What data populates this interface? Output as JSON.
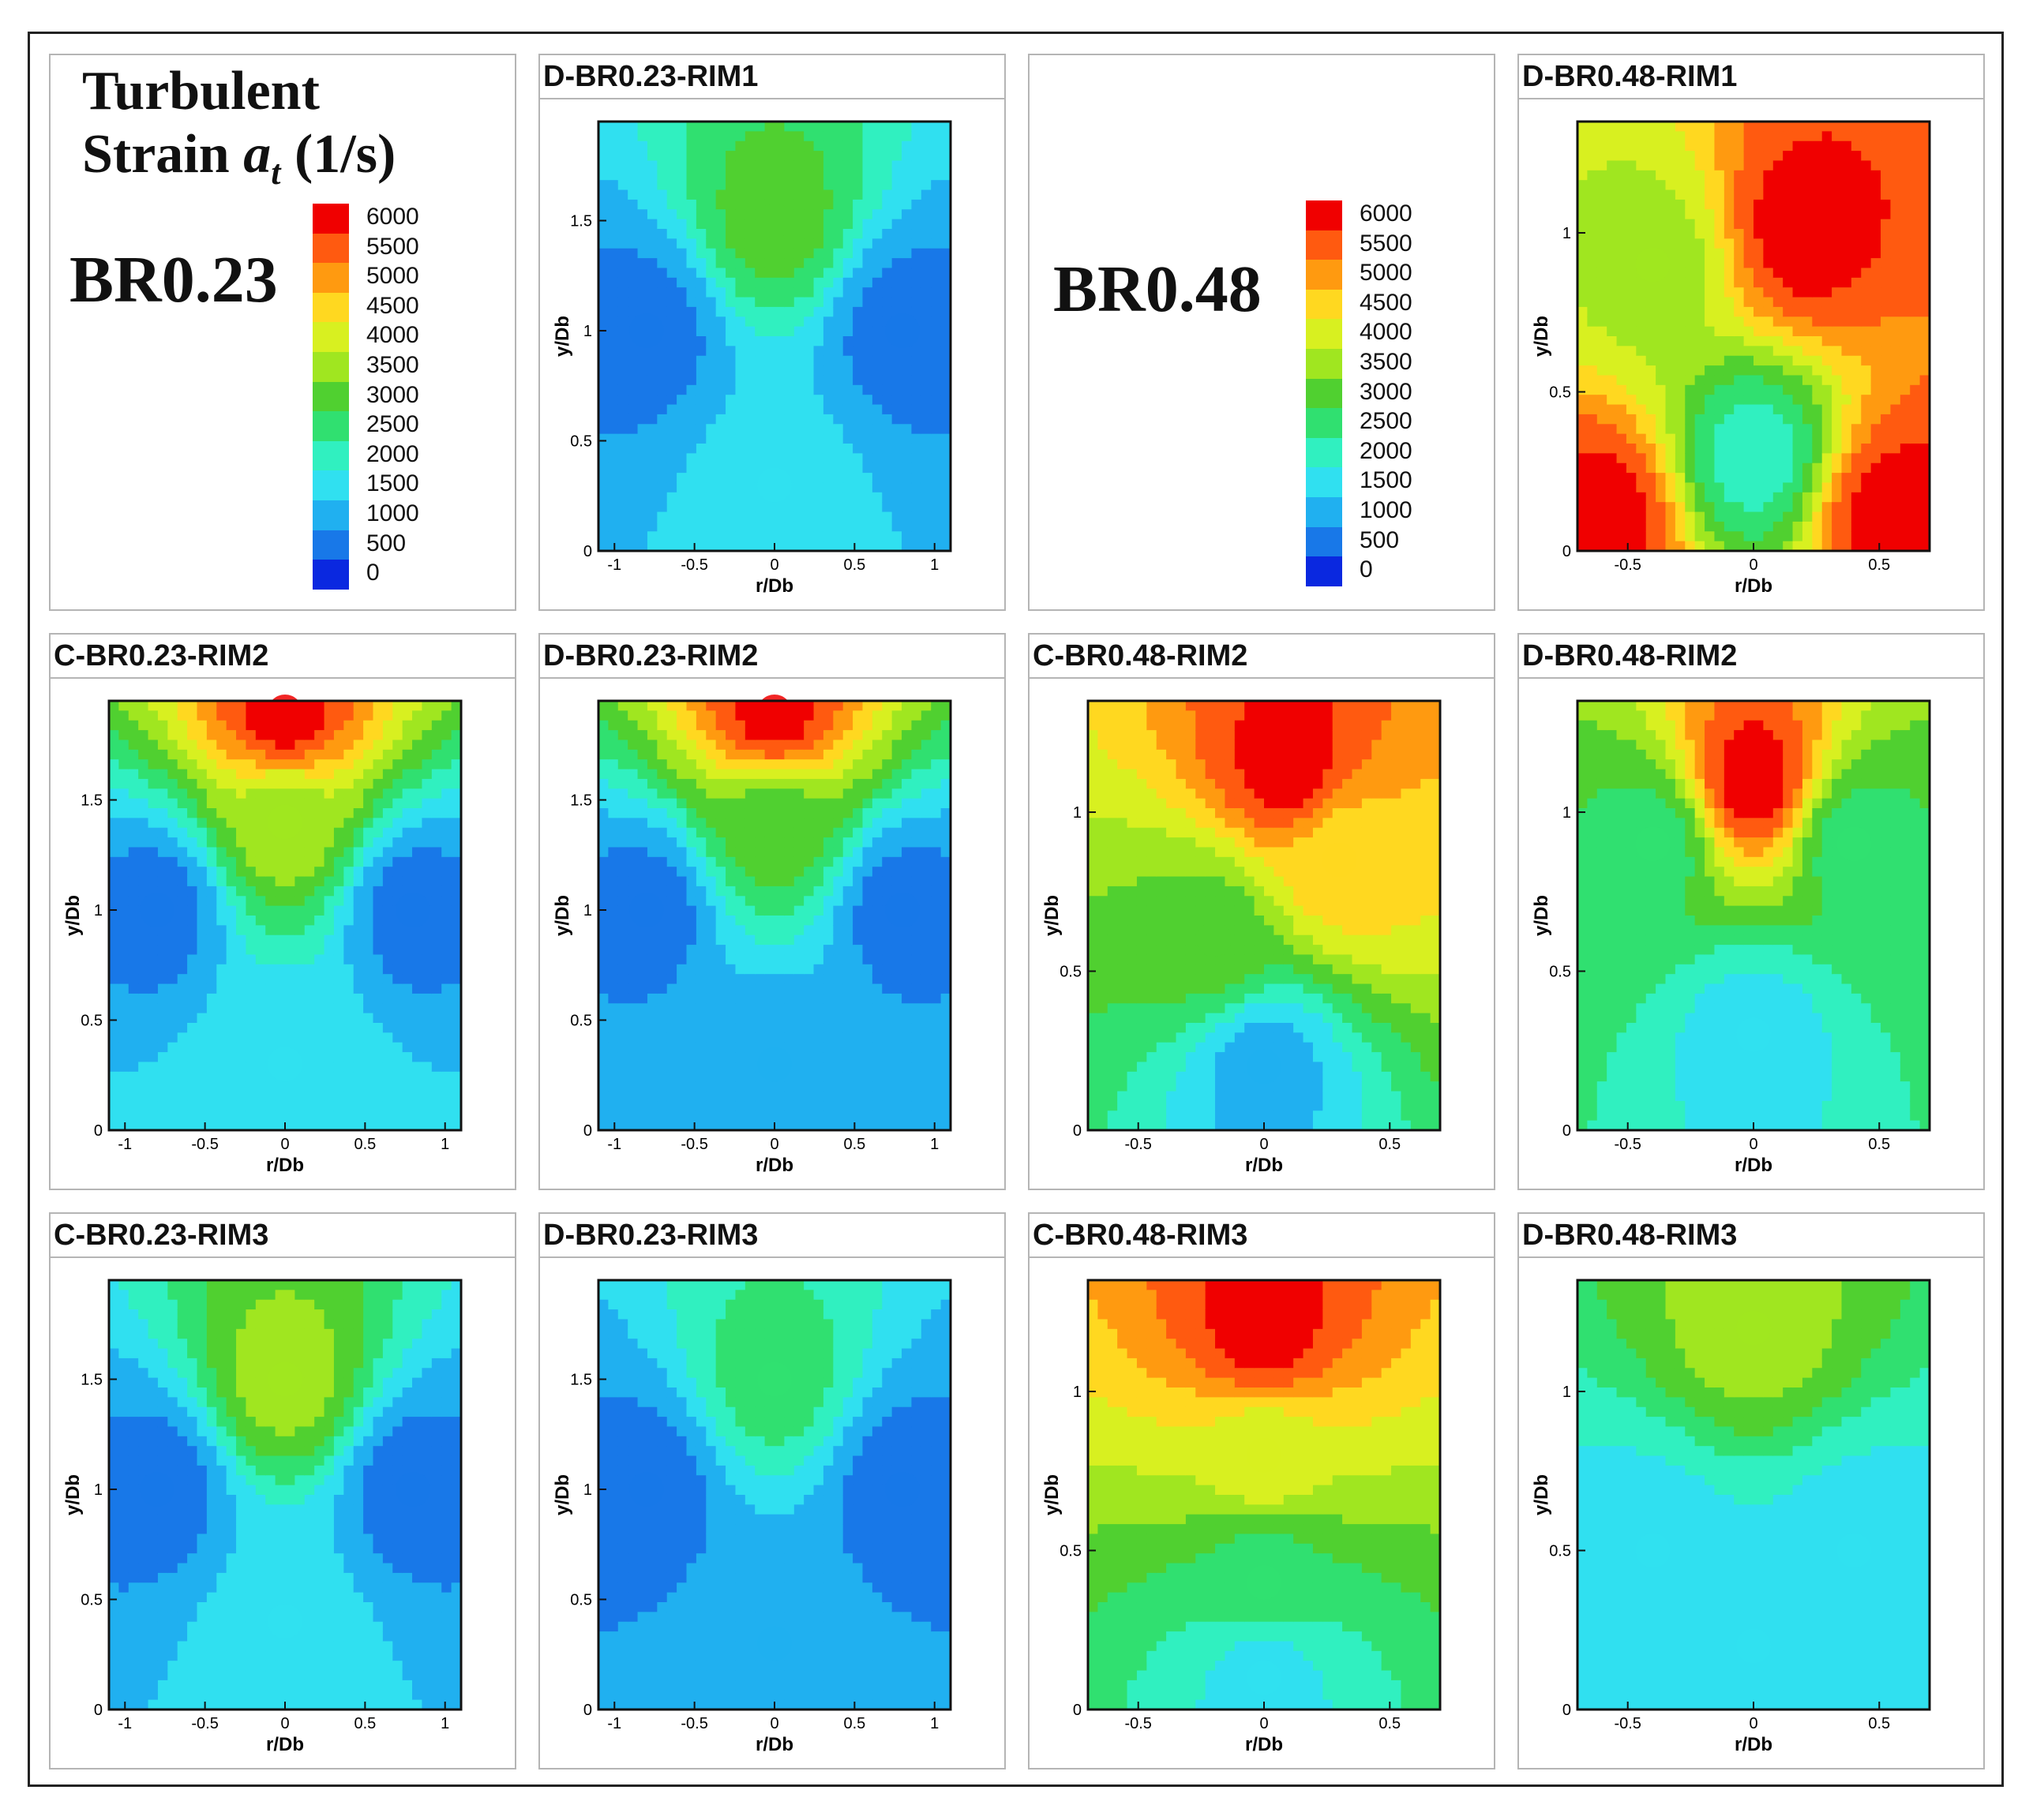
{
  "figure": {
    "legend_title_line1": "Turbulent",
    "legend_title_line2_prefix": "Strain ",
    "legend_title_symbol": "a",
    "legend_title_subscript": "t",
    "legend_title_units": " (1/s)",
    "br_labels": [
      "BR0.23",
      "BR0.48"
    ]
  },
  "colorbar": {
    "levels": [
      "6000",
      "5500",
      "5000",
      "4500",
      "4000",
      "3500",
      "3000",
      "2500",
      "2000",
      "1500",
      "1000",
      "500",
      "0"
    ],
    "colors": [
      "#f00000",
      "#ff5a10",
      "#ff9a10",
      "#ffd820",
      "#d8f020",
      "#a0e620",
      "#50d030",
      "#30e070",
      "#30f0c0",
      "#30e0f0",
      "#20b0f0",
      "#1878e8",
      "#0a28e0"
    ]
  },
  "chart_data": [
    {
      "type": "heatmap",
      "title": "D-BR0.23-RIM1",
      "xlabel": "r/Db",
      "ylabel": "y/Db",
      "xlim": [
        -1.1,
        1.1
      ],
      "ylim": [
        0,
        1.95
      ],
      "xticks": [
        "-1",
        "-0.5",
        "0",
        "0.5",
        "1"
      ],
      "yticks": [
        "0",
        "0.5",
        "1",
        "1.5"
      ],
      "regions": [
        {
          "x": 0,
          "y": 1.5,
          "value": 3000
        },
        {
          "x": -0.8,
          "y": 1.0,
          "value": 500
        },
        {
          "x": 0.8,
          "y": 1.0,
          "value": 500
        },
        {
          "x": 0,
          "y": 0.3,
          "value": 1500
        }
      ]
    },
    {
      "type": "heatmap",
      "title": "D-BR0.48-RIM1",
      "xlabel": "r/Db",
      "ylabel": "y/Db",
      "xlim": [
        -0.7,
        0.7
      ],
      "ylim": [
        0,
        1.35
      ],
      "xticks": [
        "-0.5",
        "0",
        "0.5"
      ],
      "yticks": [
        "0",
        "0.5",
        "1"
      ],
      "regions": [
        {
          "x": 0.2,
          "y": 1.0,
          "value": 6000
        },
        {
          "x": -0.4,
          "y": 0.9,
          "value": 3500
        },
        {
          "x": 0,
          "y": 0.3,
          "value": 2000
        },
        {
          "x": -0.6,
          "y": 0.1,
          "value": 6000
        },
        {
          "x": 0.55,
          "y": 0.1,
          "value": 6000
        }
      ]
    },
    {
      "type": "heatmap",
      "title": "C-BR0.23-RIM2",
      "xlabel": "r/Db",
      "ylabel": "y/Db",
      "xlim": [
        -1.1,
        1.1
      ],
      "ylim": [
        0,
        1.95
      ],
      "xticks": [
        "-1",
        "-0.5",
        "0",
        "0.5",
        "1"
      ],
      "yticks": [
        "0",
        "0.5",
        "1",
        "1.5"
      ],
      "regions": [
        {
          "x": 0,
          "y": 1.9,
          "value": 6000
        },
        {
          "x": 0,
          "y": 1.4,
          "value": 3500
        },
        {
          "x": -0.8,
          "y": 1.0,
          "value": 500
        },
        {
          "x": 0.8,
          "y": 1.0,
          "value": 500
        },
        {
          "x": 0,
          "y": 0.3,
          "value": 1500
        }
      ]
    },
    {
      "type": "heatmap",
      "title": "D-BR0.23-RIM2",
      "xlabel": "r/Db",
      "ylabel": "y/Db",
      "xlim": [
        -1.1,
        1.1
      ],
      "ylim": [
        0,
        1.95
      ],
      "xticks": [
        "-1",
        "-0.5",
        "0",
        "0.5",
        "1"
      ],
      "yticks": [
        "0",
        "0.5",
        "1",
        "1.5"
      ],
      "regions": [
        {
          "x": 0,
          "y": 1.9,
          "value": 6000
        },
        {
          "x": 0,
          "y": 1.4,
          "value": 3000
        },
        {
          "x": -0.8,
          "y": 1.0,
          "value": 500
        },
        {
          "x": 0.8,
          "y": 1.0,
          "value": 500
        },
        {
          "x": 0,
          "y": 0.3,
          "value": 1000
        }
      ]
    },
    {
      "type": "heatmap",
      "title": "C-BR0.48-RIM2",
      "xlabel": "r/Db",
      "ylabel": "y/Db",
      "xlim": [
        -0.7,
        0.7
      ],
      "ylim": [
        0,
        1.35
      ],
      "xticks": [
        "-0.5",
        "0",
        "0.5"
      ],
      "yticks": [
        "0",
        "0.5",
        "1"
      ],
      "regions": [
        {
          "x": 0.1,
          "y": 1.15,
          "value": 6000
        },
        {
          "x": 0.3,
          "y": 0.85,
          "value": 4500
        },
        {
          "x": -0.2,
          "y": 0.6,
          "value": 3000
        },
        {
          "x": 0,
          "y": 0.2,
          "value": 1000
        }
      ]
    },
    {
      "type": "heatmap",
      "title": "D-BR0.48-RIM2",
      "xlabel": "r/Db",
      "ylabel": "y/Db",
      "xlim": [
        -0.7,
        0.7
      ],
      "ylim": [
        0,
        1.35
      ],
      "xticks": [
        "-0.5",
        "0",
        "0.5"
      ],
      "yticks": [
        "0",
        "0.5",
        "1"
      ],
      "regions": [
        {
          "x": 0,
          "y": 1.1,
          "value": 6000
        },
        {
          "x": -0.4,
          "y": 0.9,
          "value": 2500
        },
        {
          "x": 0.4,
          "y": 0.9,
          "value": 2500
        },
        {
          "x": 0,
          "y": 0.3,
          "value": 1500
        }
      ]
    },
    {
      "type": "heatmap",
      "title": "C-BR0.23-RIM3",
      "xlabel": "r/Db",
      "ylabel": "y/Db",
      "xlim": [
        -1.1,
        1.1
      ],
      "ylim": [
        0,
        1.95
      ],
      "xticks": [
        "-1",
        "-0.5",
        "0",
        "0.5",
        "1"
      ],
      "yticks": [
        "0",
        "0.5",
        "1",
        "1.5"
      ],
      "regions": [
        {
          "x": 0,
          "y": 1.5,
          "value": 3500
        },
        {
          "x": -0.8,
          "y": 1.0,
          "value": 500
        },
        {
          "x": 0.8,
          "y": 1.0,
          "value": 500
        },
        {
          "x": 0,
          "y": 0.4,
          "value": 1500
        }
      ]
    },
    {
      "type": "heatmap",
      "title": "D-BR0.23-RIM3",
      "xlabel": "r/Db",
      "ylabel": "y/Db",
      "xlim": [
        -1.1,
        1.1
      ],
      "ylim": [
        0,
        1.95
      ],
      "xticks": [
        "-1",
        "-0.5",
        "0",
        "0.5",
        "1"
      ],
      "yticks": [
        "0",
        "0.5",
        "1",
        "1.5"
      ],
      "regions": [
        {
          "x": 0,
          "y": 1.5,
          "value": 2500
        },
        {
          "x": -0.8,
          "y": 1.0,
          "value": 500
        },
        {
          "x": 0.8,
          "y": 1.0,
          "value": 500
        },
        {
          "x": 0,
          "y": 0.3,
          "value": 1000
        }
      ]
    },
    {
      "type": "heatmap",
      "title": "C-BR0.48-RIM3",
      "xlabel": "r/Db",
      "ylabel": "y/Db",
      "xlim": [
        -0.7,
        0.7
      ],
      "ylim": [
        0,
        1.35
      ],
      "xticks": [
        "-0.5",
        "0",
        "0.5"
      ],
      "yticks": [
        "0",
        "0.5",
        "1"
      ],
      "regions": [
        {
          "x": 0,
          "y": 1.2,
          "value": 6000
        },
        {
          "x": 0,
          "y": 0.8,
          "value": 4000
        },
        {
          "x": 0,
          "y": 0.4,
          "value": 2500
        },
        {
          "x": 0,
          "y": 0.1,
          "value": 1500
        }
      ]
    },
    {
      "type": "heatmap",
      "title": "D-BR0.48-RIM3",
      "xlabel": "r/Db",
      "ylabel": "y/Db",
      "xlim": [
        -0.7,
        0.7
      ],
      "ylim": [
        0,
        1.35
      ],
      "xticks": [
        "-0.5",
        "0",
        "0.5"
      ],
      "yticks": [
        "0",
        "0.5",
        "1"
      ],
      "regions": [
        {
          "x": 0,
          "y": 1.2,
          "value": 3500
        },
        {
          "x": -0.4,
          "y": 0.5,
          "value": 1500
        },
        {
          "x": 0.4,
          "y": 0.5,
          "value": 1500
        },
        {
          "x": 0,
          "y": 0.2,
          "value": 1500
        }
      ]
    }
  ]
}
